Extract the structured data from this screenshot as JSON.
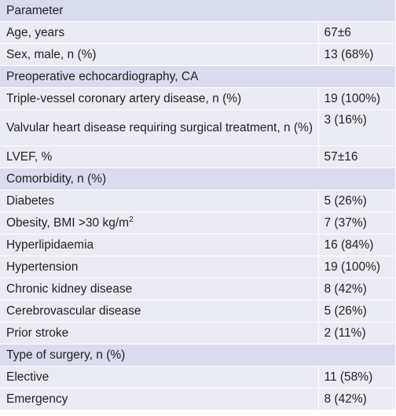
{
  "table": {
    "header": "Parameter",
    "rows": [
      {
        "type": "row",
        "label": "Age, years",
        "value": "67±6"
      },
      {
        "type": "row",
        "label": "Sex, male, n (%)",
        "value": "13 (68%)"
      },
      {
        "type": "section",
        "label": "Preoperative echocardiography, CA"
      },
      {
        "type": "row",
        "label": "Triple-vessel coronary artery disease, n (%)",
        "value": "19 (100%)"
      },
      {
        "type": "row",
        "label": "Valvular heart disease requiring surgical treatment, n (%)",
        "value": "3 (16%)",
        "tall": true
      },
      {
        "type": "row",
        "label": "LVEF, %",
        "value": "57±16"
      },
      {
        "type": "section",
        "label": "Comorbidity, n (%)"
      },
      {
        "type": "row",
        "label": "Diabetes",
        "value": "5 (26%)"
      },
      {
        "type": "row",
        "label": "Obesity, BMI >30 kg/m",
        "sup": "2",
        "value": "7 (37%)"
      },
      {
        "type": "row",
        "label": "Hyperlipidaemia",
        "value": "16 (84%)"
      },
      {
        "type": "row",
        "label": "Hypertension",
        "value": "19 (100%)"
      },
      {
        "type": "row",
        "label": "Chronic kidney disease",
        "value": "8 (42%)"
      },
      {
        "type": "row",
        "label": "Cerebrovascular disease",
        "value": "5 (26%)"
      },
      {
        "type": "row",
        "label": "Prior stroke",
        "value": "2 (11%)"
      },
      {
        "type": "section",
        "label": "Type of surgery, n (%)"
      },
      {
        "type": "row",
        "label": "Elective",
        "value": "11 (58%)"
      },
      {
        "type": "row",
        "label": "Emergency",
        "value": "8 (42%)"
      }
    ]
  },
  "colors": {
    "header_bg": "#d9dbee",
    "row_bg": "#ebebf3",
    "text": "#231f20"
  }
}
